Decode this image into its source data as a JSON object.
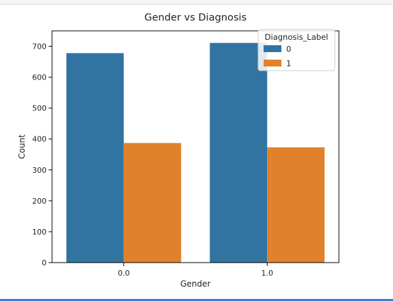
{
  "chart_data": {
    "type": "bar",
    "title": "Gender vs Diagnosis",
    "xlabel": "Gender",
    "ylabel": "Count",
    "categories": [
      "0.0",
      "1.0"
    ],
    "series": [
      {
        "name": "0",
        "values": [
          678,
          711
        ],
        "color": "#3274a1"
      },
      {
        "name": "1",
        "values": [
          387,
          373
        ],
        "color": "#e1812c"
      }
    ],
    "ylim": [
      0,
      750
    ],
    "yticks": [
      0,
      100,
      200,
      300,
      400,
      500,
      600,
      700
    ],
    "grid": false,
    "legend": {
      "title": "Diagnosis_Label",
      "placement": "top-right"
    }
  }
}
